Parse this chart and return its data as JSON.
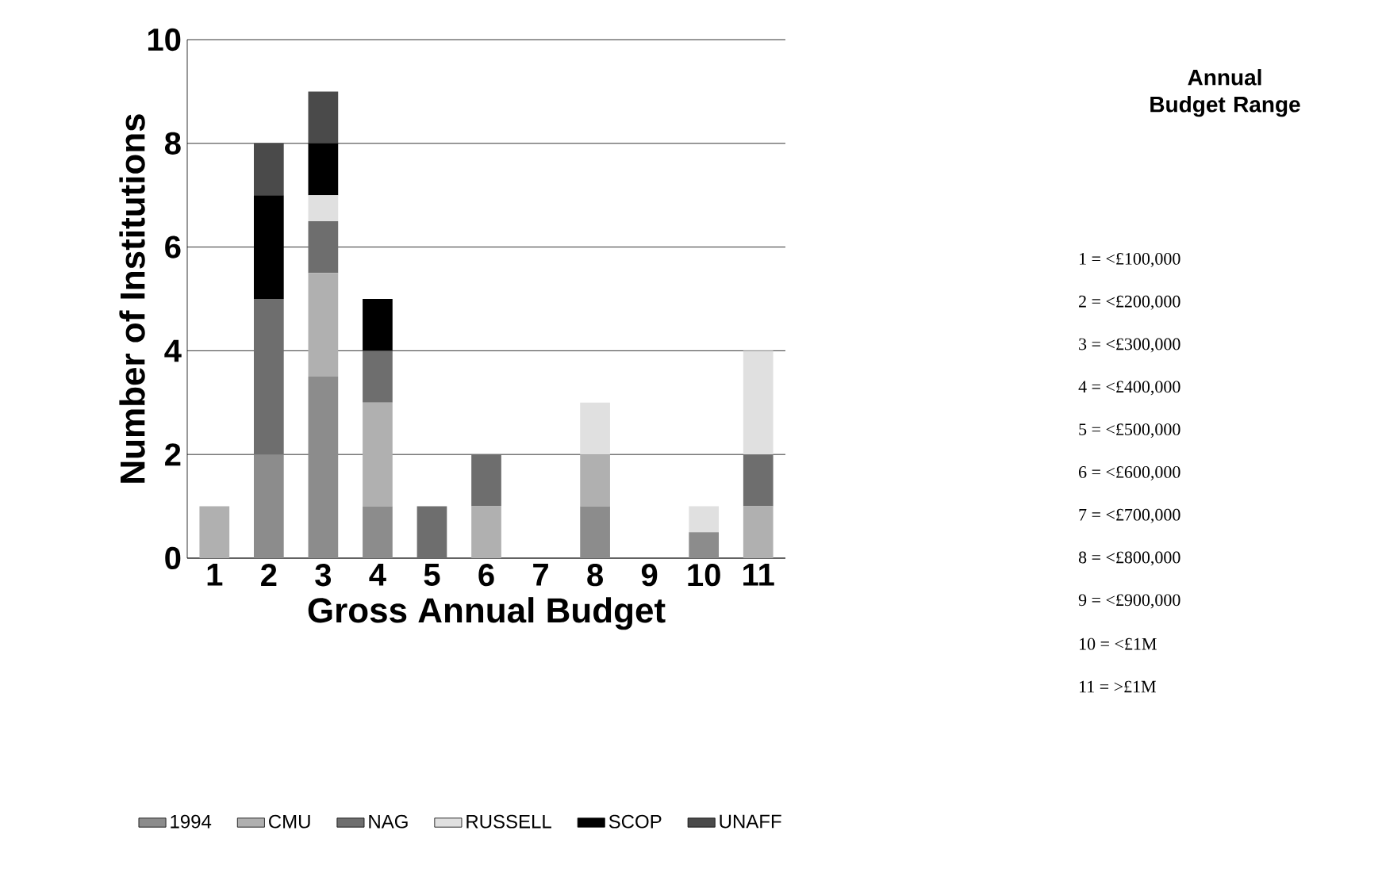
{
  "chart_data": {
    "type": "bar",
    "stacked": true,
    "xlabel": "Gross Annual Budget",
    "ylabel": "Number of Institutions",
    "categories": [
      "1",
      "2",
      "3",
      "4",
      "5",
      "6",
      "7",
      "8",
      "9",
      "10",
      "11"
    ],
    "series": [
      {
        "name": "1994",
        "color": "#8c8c8c",
        "values": [
          0,
          2,
          3.5,
          1,
          0,
          0,
          0,
          1,
          0,
          0.5,
          0
        ]
      },
      {
        "name": "CMU",
        "color": "#b0b0b0",
        "values": [
          1,
          0,
          2,
          2,
          0,
          1,
          0,
          1,
          0,
          0,
          1
        ]
      },
      {
        "name": "NAG",
        "color": "#6e6e6e",
        "values": [
          0,
          3,
          1,
          1,
          1,
          1,
          0,
          0,
          0,
          0,
          1
        ]
      },
      {
        "name": "RUSSELL",
        "color": "#e0e0e0",
        "values": [
          0,
          0,
          0.5,
          0,
          0,
          0,
          0,
          1,
          0,
          0.5,
          2
        ]
      },
      {
        "name": "SCOP",
        "color": "#000000",
        "values": [
          0,
          2,
          1,
          1,
          0,
          0,
          0,
          0,
          0,
          0,
          0
        ]
      },
      {
        "name": "UNAFF",
        "color": "#4a4a4a",
        "values": [
          0,
          1,
          1,
          0,
          0,
          0,
          0,
          0,
          0,
          0,
          0
        ]
      }
    ],
    "ylim": [
      0,
      10
    ],
    "yticks": [
      0,
      2,
      4,
      6,
      8,
      10
    ],
    "grid": "y",
    "legend": "bottom",
    "annotations": [
      "Annual Budget Range",
      "1  =  <£100,000",
      "2  =  <£200,000",
      "3  =  <£300,000",
      "4  =  <£400,000",
      "5  =  <£500,000",
      "6  =  <£600,000",
      "7  =  <£700,000",
      "8  =  <£800,000",
      "9  =  <£900,000",
      "10 =  <£1M",
      "11 =  >£1M"
    ]
  }
}
